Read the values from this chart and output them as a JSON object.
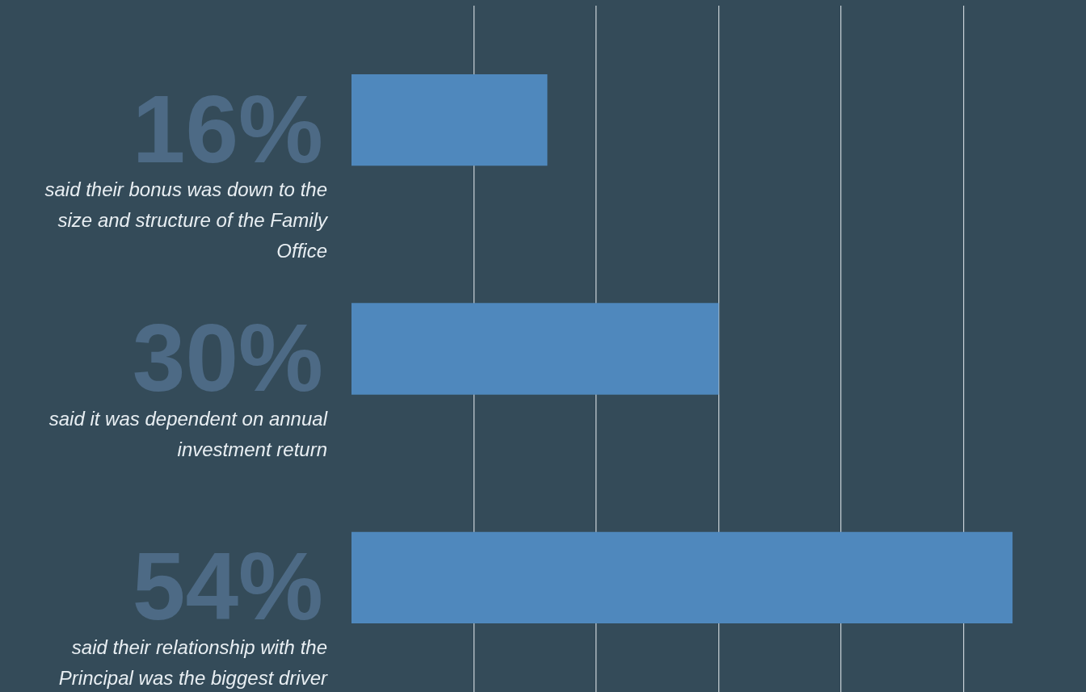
{
  "chart_data": {
    "type": "bar",
    "orientation": "horizontal",
    "categories": [
      "said their bonus was down to the size and structure of the Family Office",
      "said it was dependent on annual investment return",
      "said their relationship with the Principal was the biggest driver"
    ],
    "values": [
      16,
      30,
      54
    ],
    "color": "#4f88bd",
    "value_labels": [
      "16%",
      "30%",
      "54%"
    ],
    "xticks": [
      {
        "value": 10,
        "label": null
      },
      {
        "value": 20,
        "label": null
      },
      {
        "value": 30,
        "label": null
      },
      {
        "value": 40,
        "label": null
      },
      {
        "value": 50,
        "label": null
      }
    ],
    "grid": "x",
    "tick_labels": "y",
    "legend": false
  }
}
